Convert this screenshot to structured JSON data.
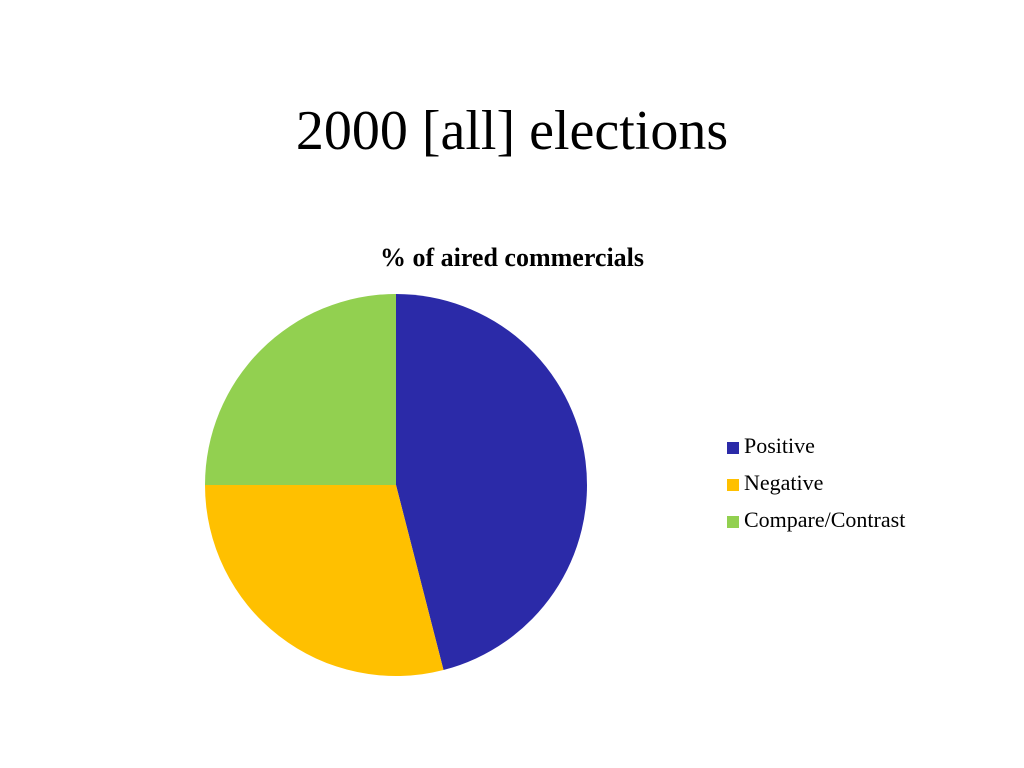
{
  "slide_title": "2000 [all] elections",
  "chart_data": {
    "type": "pie",
    "title": "% of aired commercials",
    "categories": [
      "Positive",
      "Negative",
      "Compare/Contrast"
    ],
    "values": [
      46,
      29,
      25
    ],
    "colors": [
      "#2b2aa8",
      "#ffc000",
      "#92d050"
    ],
    "legend": "right"
  }
}
